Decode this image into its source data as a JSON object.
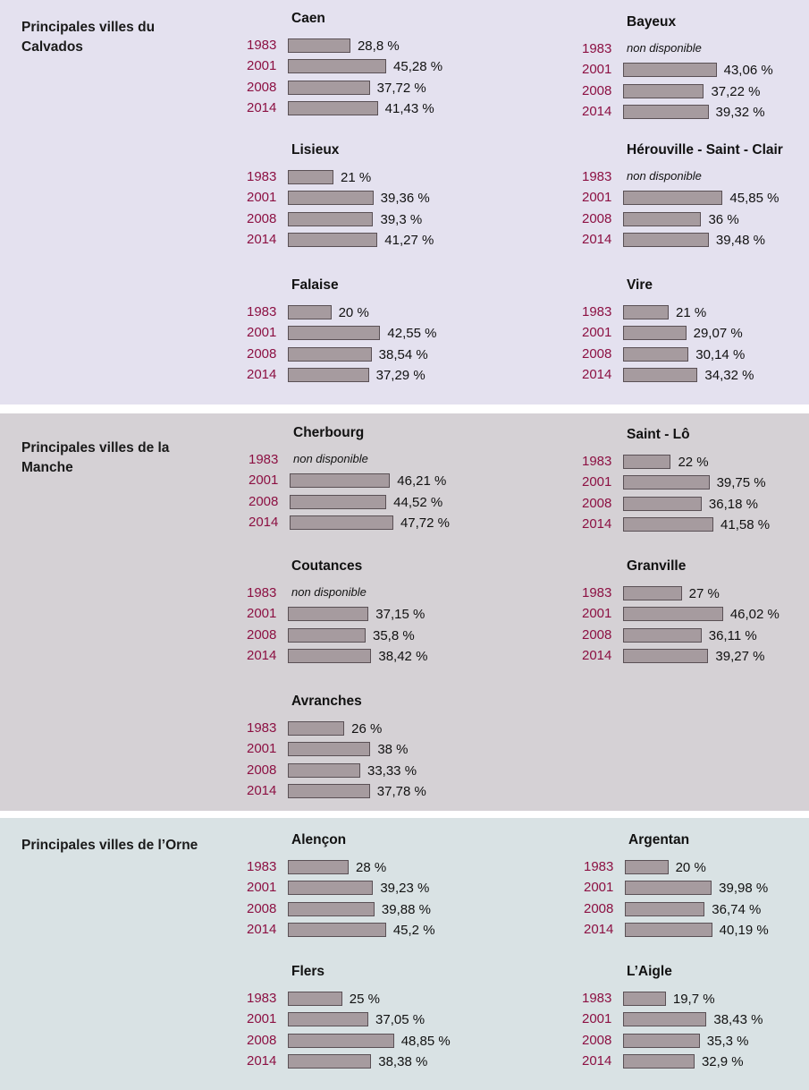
{
  "colors": {
    "calvados_bg": "#e4e1ef",
    "manche_bg": "#d5d1d5",
    "orne_bg": "#d9e2e4",
    "bar_fill": "#a69b9f",
    "year_text": "#8c1042"
  },
  "chart_data": {
    "type": "bar",
    "orientation": "horizontal",
    "unit": "%",
    "years": [
      "1983",
      "2001",
      "2008",
      "2014"
    ],
    "sections": [
      {
        "title": "Principales villes du Calvados",
        "cities": [
          {
            "name": "Caen",
            "values": [
              28.8,
              45.28,
              37.72,
              41.43
            ],
            "labels": [
              "28,8 %",
              "45,28 %",
              "37,72 %",
              "41,43 %"
            ]
          },
          {
            "name": "Bayeux",
            "values": [
              null,
              43.06,
              37.22,
              39.32
            ],
            "labels": [
              "non disponible",
              "43,06 %",
              "37,22 %",
              "39,32 %"
            ]
          },
          {
            "name": "Lisieux",
            "values": [
              21,
              39.36,
              39.3,
              41.27
            ],
            "labels": [
              "21 %",
              "39,36 %",
              "39,3 %",
              "41,27 %"
            ]
          },
          {
            "name": "Hérouville - Saint - Clair",
            "values": [
              null,
              45.85,
              36,
              39.48
            ],
            "labels": [
              "non disponible",
              "45,85 %",
              "36 %",
              "39,48 %"
            ]
          },
          {
            "name": "Falaise",
            "values": [
              20,
              42.55,
              38.54,
              37.29
            ],
            "labels": [
              "20 %",
              "42,55 %",
              "38,54 %",
              "37,29 %"
            ]
          },
          {
            "name": "Vire",
            "values": [
              21,
              29.07,
              30.14,
              34.32
            ],
            "labels": [
              "21 %",
              "29,07 %",
              "30,14 %",
              "34,32 %"
            ]
          }
        ]
      },
      {
        "title": "Principales villes de la Manche",
        "cities": [
          {
            "name": "Cherbourg",
            "values": [
              null,
              46.21,
              44.52,
              47.72
            ],
            "labels": [
              "non disponible",
              "46,21 %",
              "44,52 %",
              "47,72 %"
            ]
          },
          {
            "name": "Saint - Lô",
            "values": [
              22,
              39.75,
              36.18,
              41.58
            ],
            "labels": [
              "22 %",
              "39,75 %",
              "36,18 %",
              "41,58 %"
            ]
          },
          {
            "name": "Coutances",
            "values": [
              null,
              37.15,
              35.8,
              38.42
            ],
            "labels": [
              "non disponible",
              "37,15 %",
              "35,8 %",
              "38,42 %"
            ]
          },
          {
            "name": "Granville",
            "values": [
              27,
              46.02,
              36.11,
              39.27
            ],
            "labels": [
              "27 %",
              "46,02 %",
              "36,11 %",
              "39,27 %"
            ]
          },
          {
            "name": "Avranches",
            "values": [
              26,
              38,
              33.33,
              37.78
            ],
            "labels": [
              "26 %",
              "38 %",
              "33,33 %",
              "37,78 %"
            ]
          }
        ]
      },
      {
        "title": "Principales villes de l’Orne",
        "cities": [
          {
            "name": "Alençon",
            "values": [
              28,
              39.23,
              39.88,
              45.2
            ],
            "labels": [
              "28 %",
              "39,23 %",
              "39,88 %",
              "45,2 %"
            ]
          },
          {
            "name": "Argentan",
            "values": [
              20,
              39.98,
              36.74,
              40.19
            ],
            "labels": [
              "20 %",
              "39,98 %",
              "36,74 %",
              "40,19 %"
            ]
          },
          {
            "name": "Flers",
            "values": [
              25,
              37.05,
              48.85,
              38.38
            ],
            "labels": [
              "25 %",
              "37,05 %",
              "48,85 %",
              "38,38 %"
            ]
          },
          {
            "name": "L’Aigle",
            "values": [
              19.7,
              38.43,
              35.3,
              32.9
            ],
            "labels": [
              "19,7 %",
              "38,43 %",
              "35,3 %",
              "32,9 %"
            ]
          }
        ]
      }
    ]
  }
}
